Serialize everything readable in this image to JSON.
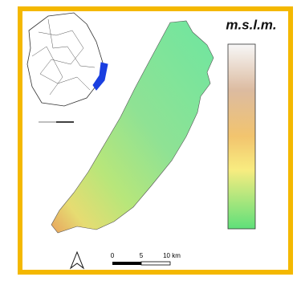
{
  "map": {
    "legend_title": "m.s.l.m.",
    "scale_bar": {
      "labels": [
        "0",
        "5",
        "10 km"
      ]
    }
  }
}
